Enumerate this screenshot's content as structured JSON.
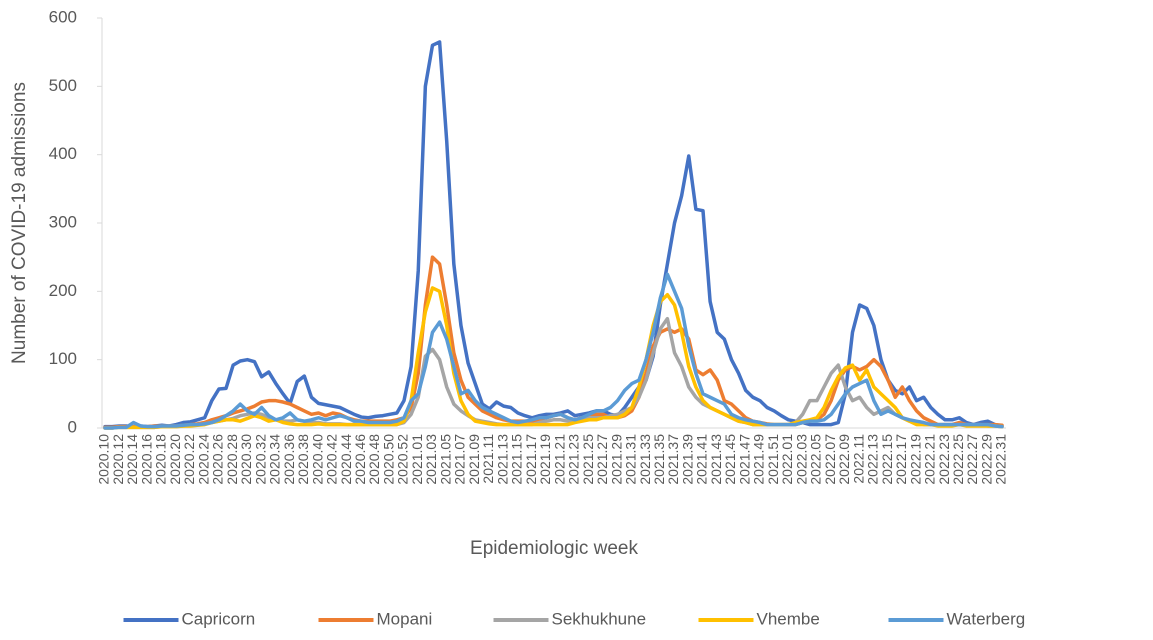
{
  "chart_data": {
    "type": "line",
    "x_label": "Epidemiologic week",
    "y_label": "Number of COVID-19 admissions",
    "ylim": [
      0,
      600
    ],
    "yticks": [
      0,
      100,
      200,
      300,
      400,
      500,
      600
    ],
    "grid": false,
    "legend": "bottom",
    "categories": [
      "2020.10",
      null,
      "2020.12",
      null,
      "2020.14",
      null,
      "2020.16",
      null,
      "2020.18",
      null,
      "2020.20",
      null,
      "2020.22",
      null,
      "2020.24",
      null,
      "2020.26",
      null,
      "2020.28",
      null,
      "2020.30",
      null,
      "2020.32",
      null,
      "2020.34",
      null,
      "2020.36",
      null,
      "2020.38",
      null,
      "2020.40",
      null,
      "2020.42",
      null,
      "2020.44",
      null,
      "2020.46",
      null,
      "2020.48",
      null,
      "2020.50",
      null,
      "2020.52",
      null,
      "2021.01",
      null,
      "2021.03",
      null,
      "2021.05",
      null,
      "2021.07",
      null,
      "2021.09",
      null,
      "2021.11",
      null,
      "2021.13",
      null,
      "2021.15",
      null,
      "2021.17",
      null,
      "2021.19",
      null,
      "2021.21",
      null,
      "2021.23",
      null,
      "2021.25",
      null,
      "2021.27",
      null,
      "2021.29",
      null,
      "2021.31",
      null,
      "2021.33",
      null,
      "2021.35",
      null,
      "2021.37",
      null,
      "2021.39",
      null,
      "2021.41",
      null,
      "2021.43",
      null,
      "2021.45",
      null,
      "2021.47",
      null,
      "2021.49",
      null,
      "2021.51",
      null,
      "2022.01",
      null,
      "2022.03",
      null,
      "2022.05",
      null,
      "2022.07",
      null,
      "2022.09",
      null,
      "2022.11",
      null,
      "2022.13",
      null,
      "2022.15",
      null,
      "2022.17",
      null,
      "2022.19",
      null,
      "2022.21",
      null,
      "2022.23",
      null,
      "2022.25",
      null,
      "2022.27",
      null,
      "2022.29",
      null,
      "2022.31"
    ],
    "series": [
      {
        "name": "Capricorn",
        "color": "#4472c4",
        "values": [
          2,
          2,
          3,
          3,
          2,
          3,
          2,
          3,
          4,
          3,
          5,
          8,
          9,
          12,
          15,
          40,
          57,
          58,
          92,
          98,
          100,
          97,
          75,
          82,
          65,
          50,
          36,
          68,
          76,
          45,
          36,
          34,
          32,
          30,
          25,
          20,
          16,
          15,
          17,
          18,
          20,
          22,
          40,
          90,
          230,
          500,
          560,
          565,
          420,
          240,
          150,
          95,
          65,
          35,
          28,
          38,
          32,
          30,
          22,
          18,
          15,
          18,
          20,
          20,
          22,
          25,
          18,
          20,
          22,
          25,
          25,
          20,
          18,
          30,
          45,
          60,
          70,
          105,
          180,
          240,
          300,
          340,
          398,
          320,
          318,
          185,
          140,
          130,
          100,
          80,
          55,
          45,
          40,
          30,
          25,
          18,
          12,
          10,
          8,
          5,
          5,
          5,
          5,
          8,
          50,
          140,
          180,
          175,
          150,
          100,
          70,
          55,
          50,
          60,
          40,
          45,
          30,
          20,
          12,
          12,
          15,
          8,
          5,
          8,
          10,
          5,
          3
        ]
      },
      {
        "name": "Mopani",
        "color": "#ed7d31",
        "values": [
          1,
          1,
          2,
          2,
          2,
          2,
          2,
          3,
          3,
          3,
          3,
          4,
          5,
          6,
          8,
          12,
          15,
          18,
          22,
          25,
          28,
          32,
          38,
          40,
          40,
          38,
          35,
          30,
          25,
          20,
          22,
          18,
          22,
          20,
          15,
          12,
          10,
          10,
          10,
          10,
          10,
          12,
          15,
          30,
          80,
          180,
          250,
          240,
          180,
          110,
          70,
          45,
          35,
          25,
          20,
          15,
          12,
          10,
          10,
          10,
          10,
          12,
          15,
          18,
          20,
          15,
          12,
          15,
          18,
          20,
          20,
          15,
          15,
          18,
          25,
          45,
          80,
          120,
          140,
          145,
          140,
          145,
          130,
          85,
          78,
          85,
          70,
          40,
          35,
          25,
          15,
          10,
          8,
          6,
          5,
          5,
          5,
          5,
          8,
          10,
          12,
          20,
          40,
          70,
          85,
          90,
          85,
          90,
          100,
          90,
          70,
          45,
          60,
          40,
          25,
          15,
          10,
          5,
          5,
          5,
          8,
          5,
          5,
          5,
          5,
          5,
          4
        ]
      },
      {
        "name": "Sekhukhune",
        "color": "#a5a5a5",
        "values": [
          0,
          0,
          1,
          1,
          1,
          1,
          1,
          1,
          2,
          2,
          2,
          3,
          4,
          5,
          6,
          8,
          10,
          12,
          14,
          18,
          20,
          22,
          20,
          15,
          12,
          10,
          10,
          12,
          10,
          8,
          8,
          6,
          6,
          6,
          5,
          5,
          5,
          5,
          5,
          5,
          5,
          5,
          8,
          20,
          45,
          105,
          115,
          100,
          60,
          35,
          25,
          18,
          12,
          10,
          8,
          6,
          5,
          5,
          5,
          5,
          5,
          8,
          10,
          12,
          12,
          10,
          10,
          12,
          15,
          15,
          15,
          18,
          20,
          25,
          30,
          45,
          70,
          110,
          145,
          160,
          110,
          90,
          60,
          45,
          35,
          30,
          25,
          20,
          15,
          10,
          8,
          5,
          5,
          5,
          5,
          5,
          5,
          8,
          20,
          40,
          40,
          60,
          80,
          92,
          60,
          40,
          45,
          30,
          20,
          25,
          30,
          20,
          15,
          10,
          8,
          5,
          5,
          5,
          5,
          5,
          5,
          5,
          5,
          5,
          3,
          3,
          2
        ]
      },
      {
        "name": "Vhembe",
        "color": "#ffc000",
        "values": [
          0,
          0,
          1,
          1,
          1,
          1,
          1,
          1,
          2,
          2,
          2,
          3,
          3,
          4,
          5,
          8,
          10,
          12,
          12,
          10,
          14,
          18,
          15,
          10,
          12,
          8,
          6,
          5,
          5,
          5,
          6,
          5,
          5,
          5,
          5,
          5,
          5,
          5,
          5,
          5,
          5,
          5,
          10,
          40,
          110,
          170,
          205,
          200,
          150,
          80,
          40,
          20,
          10,
          8,
          6,
          5,
          5,
          5,
          5,
          5,
          5,
          5,
          5,
          5,
          5,
          5,
          8,
          10,
          12,
          12,
          15,
          15,
          15,
          20,
          30,
          60,
          100,
          150,
          185,
          195,
          180,
          140,
          90,
          60,
          40,
          30,
          25,
          20,
          15,
          10,
          8,
          5,
          5,
          5,
          5,
          5,
          5,
          8,
          10,
          12,
          15,
          30,
          55,
          75,
          88,
          92,
          70,
          85,
          60,
          50,
          40,
          30,
          15,
          10,
          5,
          5,
          5,
          3,
          3,
          3,
          5,
          3,
          3,
          3,
          3,
          3,
          2
        ]
      },
      {
        "name": "Waterberg",
        "color": "#5b9bd5",
        "values": [
          0,
          0,
          1,
          1,
          8,
          3,
          2,
          2,
          3,
          3,
          3,
          4,
          5,
          5,
          6,
          8,
          12,
          18,
          25,
          35,
          25,
          20,
          30,
          18,
          12,
          15,
          22,
          12,
          10,
          12,
          15,
          12,
          15,
          18,
          15,
          10,
          10,
          8,
          8,
          8,
          8,
          10,
          15,
          40,
          50,
          90,
          140,
          155,
          130,
          90,
          50,
          55,
          40,
          30,
          25,
          20,
          15,
          10,
          8,
          10,
          12,
          15,
          15,
          18,
          20,
          15,
          12,
          15,
          20,
          25,
          25,
          30,
          40,
          55,
          65,
          70,
          100,
          140,
          190,
          225,
          200,
          175,
          120,
          80,
          50,
          45,
          40,
          35,
          20,
          15,
          12,
          10,
          8,
          5,
          5,
          5,
          5,
          5,
          8,
          10,
          10,
          12,
          20,
          35,
          50,
          60,
          65,
          70,
          40,
          20,
          25,
          20,
          15,
          12,
          10,
          8,
          5,
          5,
          5,
          5,
          5,
          5,
          5,
          5,
          5,
          3,
          2
        ]
      }
    ]
  }
}
